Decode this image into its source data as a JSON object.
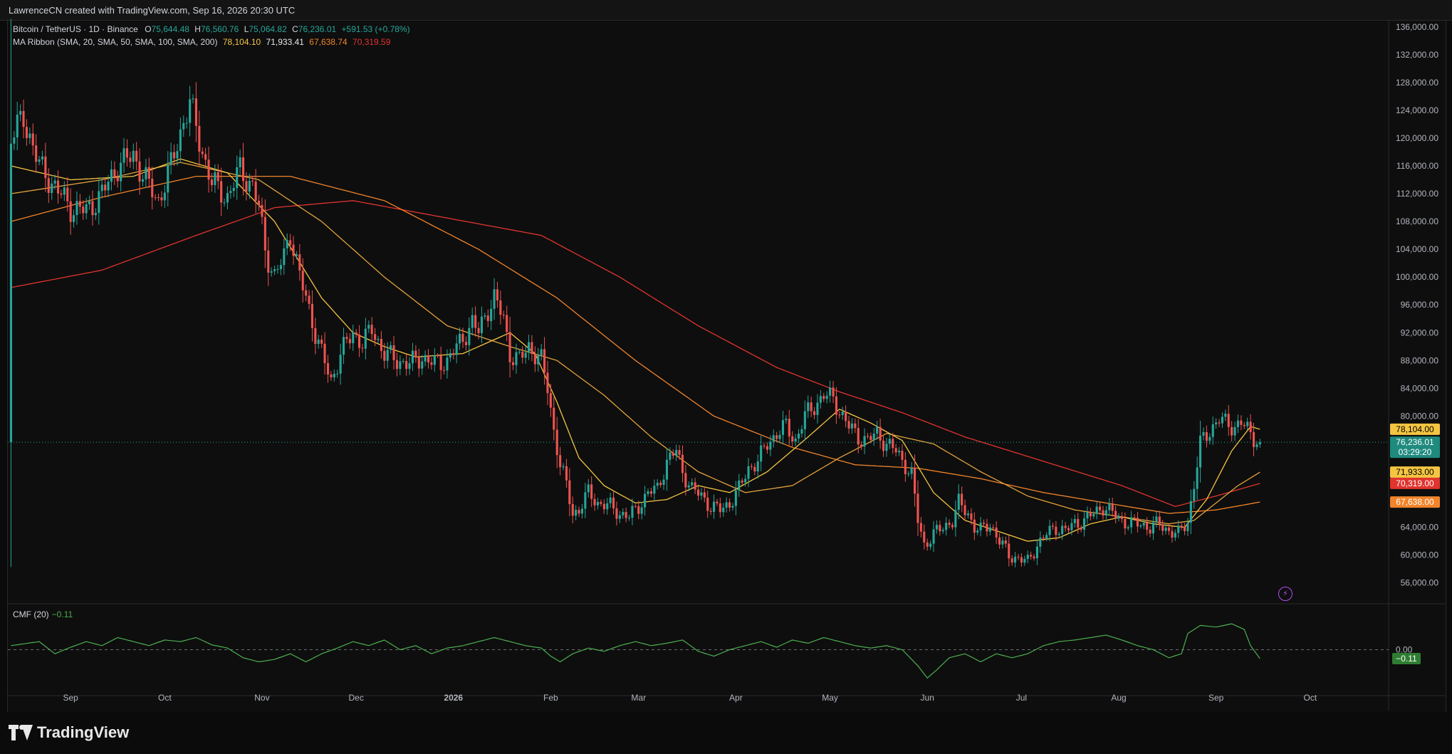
{
  "header": {
    "created_by": "LawrenceCN created with TradingView.com, Sep 16, 2026 20:30 UTC"
  },
  "legend": {
    "symbol": "Bitcoin / TetherUS · 1D · Binance",
    "o_label": "O",
    "o_value": "75,644.48",
    "h_label": "H",
    "h_value": "76,560.76",
    "l_label": "L",
    "l_value": "75,064.82",
    "c_label": "C",
    "c_value": "76,236.01",
    "change": "+591.53 (+0.78%)",
    "ma_title": "MA Ribbon (SMA, 20, SMA, 50, SMA, 100, SMA, 200)",
    "ma20": "78,104.10",
    "ma50": "71,933.41",
    "ma100": "67,638.74",
    "ma200": "70,319.59"
  },
  "cmf": {
    "title": "CMF (20)",
    "value": "−0.11",
    "zero_label": "0.00",
    "badge": "−0.11"
  },
  "price_badges": {
    "ma20": "78,104.10",
    "last_price": "76,236.01",
    "countdown": "03:29:20",
    "ma50": "71,933.41",
    "ma200": "70,319.59",
    "ma100": "67,638.74"
  },
  "brand": {
    "name": "TradingView"
  },
  "colors": {
    "up": "#26a69a",
    "down": "#ef5350",
    "ma20": "#f5c542",
    "ma50": "#e3a33a",
    "ma100": "#f2842a",
    "ma200": "#e0342e",
    "cmf": "#4caf50",
    "bg": "#0e0e0e"
  },
  "chart_data": {
    "type": "candlestick",
    "y_axis_ticks": [
      136000,
      132000,
      128000,
      124000,
      120000,
      116000,
      112000,
      108000,
      104000,
      100000,
      96000,
      92000,
      88000,
      84000,
      80000,
      64000,
      60000,
      56000
    ],
    "y_range": [
      53000,
      137000
    ],
    "x_ticks": [
      {
        "label": "Sep",
        "day": 10
      },
      {
        "label": "Oct",
        "day": 40
      },
      {
        "label": "Nov",
        "day": 71
      },
      {
        "label": "Dec",
        "day": 101
      },
      {
        "label": "2026",
        "day": 132
      },
      {
        "label": "Feb",
        "day": 163
      },
      {
        "label": "Mar",
        "day": 191
      },
      {
        "label": "Apr",
        "day": 222
      },
      {
        "label": "May",
        "day": 252
      },
      {
        "label": "Jun",
        "day": 283
      },
      {
        "label": "Jul",
        "day": 313
      },
      {
        "label": "Aug",
        "day": 344
      },
      {
        "label": "Sep",
        "day": 375
      },
      {
        "label": "Oct",
        "day": 405
      }
    ],
    "x_range": [
      -10,
      430
    ],
    "last_day": 389,
    "price_keypoints": [
      [
        -9,
        120000
      ],
      [
        -5,
        123000
      ],
      [
        0,
        116000
      ],
      [
        5,
        113000
      ],
      [
        10,
        110000
      ],
      [
        15,
        109500
      ],
      [
        20,
        112000
      ],
      [
        25,
        116000
      ],
      [
        30,
        117500
      ],
      [
        35,
        113000
      ],
      [
        38,
        111000
      ],
      [
        42,
        116000
      ],
      [
        46,
        122500
      ],
      [
        48,
        125000
      ],
      [
        52,
        118000
      ],
      [
        55,
        113500
      ],
      [
        60,
        111500
      ],
      [
        64,
        115500
      ],
      [
        68,
        113000
      ],
      [
        70,
        110000
      ],
      [
        72,
        104000
      ],
      [
        75,
        100000
      ],
      [
        78,
        103000
      ],
      [
        80,
        106500
      ],
      [
        83,
        100000
      ],
      [
        85,
        97000
      ],
      [
        88,
        92000
      ],
      [
        90,
        89000
      ],
      [
        93,
        85000
      ],
      [
        96,
        89000
      ],
      [
        100,
        92000
      ],
      [
        103,
        90500
      ],
      [
        106,
        92500
      ],
      [
        110,
        89000
      ],
      [
        114,
        88000
      ],
      [
        118,
        87500
      ],
      [
        122,
        88500
      ],
      [
        126,
        87500
      ],
      [
        130,
        88000
      ],
      [
        134,
        90500
      ],
      [
        138,
        93500
      ],
      [
        140,
        92000
      ],
      [
        143,
        95500
      ],
      [
        145,
        97000
      ],
      [
        148,
        94000
      ],
      [
        150,
        89000
      ],
      [
        153,
        88000
      ],
      [
        156,
        90000
      ],
      [
        160,
        88000
      ],
      [
        162,
        84000
      ],
      [
        164,
        78000
      ],
      [
        166,
        73000
      ],
      [
        168,
        70000
      ],
      [
        170,
        66000
      ],
      [
        172,
        66500
      ],
      [
        175,
        69000
      ],
      [
        178,
        67500
      ],
      [
        182,
        67000
      ],
      [
        185,
        66000
      ],
      [
        188,
        65500
      ],
      [
        191,
        67000
      ],
      [
        194,
        69000
      ],
      [
        197,
        69500
      ],
      [
        200,
        73500
      ],
      [
        203,
        75000
      ],
      [
        205,
        72000
      ],
      [
        208,
        69500
      ],
      [
        211,
        68500
      ],
      [
        214,
        67000
      ],
      [
        217,
        66500
      ],
      [
        220,
        67500
      ],
      [
        223,
        69500
      ],
      [
        226,
        72500
      ],
      [
        229,
        73500
      ],
      [
        232,
        76000
      ],
      [
        235,
        77500
      ],
      [
        238,
        78500
      ],
      [
        241,
        76500
      ],
      [
        244,
        80000
      ],
      [
        247,
        81500
      ],
      [
        250,
        83000
      ],
      [
        253,
        82500
      ],
      [
        256,
        80000
      ],
      [
        258,
        78500
      ],
      [
        261,
        77000
      ],
      [
        264,
        76500
      ],
      [
        267,
        77500
      ],
      [
        270,
        76000
      ],
      [
        273,
        75000
      ],
      [
        276,
        73000
      ],
      [
        278,
        71500
      ],
      [
        280,
        65000
      ],
      [
        282,
        61500
      ],
      [
        285,
        63000
      ],
      [
        288,
        64000
      ],
      [
        291,
        65000
      ],
      [
        293,
        67500
      ],
      [
        296,
        66000
      ],
      [
        298,
        64000
      ],
      [
        300,
        63500
      ],
      [
        303,
        64500
      ],
      [
        306,
        62000
      ],
      [
        309,
        60000
      ],
      [
        312,
        59500
      ],
      [
        315,
        59000
      ],
      [
        318,
        61500
      ],
      [
        321,
        63000
      ],
      [
        324,
        64000
      ],
      [
        327,
        63500
      ],
      [
        330,
        64500
      ],
      [
        333,
        65000
      ],
      [
        336,
        66000
      ],
      [
        339,
        67000
      ],
      [
        342,
        66000
      ],
      [
        345,
        65000
      ],
      [
        348,
        64500
      ],
      [
        351,
        64500
      ],
      [
        354,
        64000
      ],
      [
        357,
        64500
      ],
      [
        360,
        63500
      ],
      [
        363,
        63000
      ],
      [
        366,
        65000
      ],
      [
        368,
        70000
      ],
      [
        370,
        76000
      ],
      [
        373,
        78000
      ],
      [
        376,
        79500
      ],
      [
        378,
        79000
      ],
      [
        381,
        78500
      ],
      [
        383,
        79000
      ],
      [
        385,
        78000
      ],
      [
        387,
        77000
      ],
      [
        389,
        76236
      ]
    ],
    "ma_series": {
      "ma20": [
        [
          -9,
          116000
        ],
        [
          10,
          114000
        ],
        [
          30,
          114500
        ],
        [
          45,
          117000
        ],
        [
          60,
          115000
        ],
        [
          75,
          108000
        ],
        [
          90,
          97000
        ],
        [
          100,
          92000
        ],
        [
          110,
          90000
        ],
        [
          120,
          88500
        ],
        [
          135,
          89000
        ],
        [
          150,
          92000
        ],
        [
          158,
          89000
        ],
        [
          165,
          82000
        ],
        [
          172,
          74000
        ],
        [
          180,
          70000
        ],
        [
          190,
          67500
        ],
        [
          200,
          68000
        ],
        [
          210,
          70000
        ],
        [
          220,
          69000
        ],
        [
          232,
          72000
        ],
        [
          245,
          77000
        ],
        [
          255,
          81000
        ],
        [
          265,
          79000
        ],
        [
          275,
          76500
        ],
        [
          285,
          69000
        ],
        [
          295,
          65000
        ],
        [
          305,
          63500
        ],
        [
          315,
          62000
        ],
        [
          325,
          62500
        ],
        [
          335,
          64500
        ],
        [
          345,
          65500
        ],
        [
          355,
          64500
        ],
        [
          365,
          64000
        ],
        [
          372,
          68000
        ],
        [
          380,
          75000
        ],
        [
          386,
          78500
        ],
        [
          389,
          78104
        ]
      ],
      "ma50": [
        [
          -9,
          112000
        ],
        [
          20,
          114000
        ],
        [
          45,
          116500
        ],
        [
          70,
          114000
        ],
        [
          90,
          108000
        ],
        [
          110,
          100000
        ],
        [
          130,
          93000
        ],
        [
          150,
          90000
        ],
        [
          165,
          88000
        ],
        [
          180,
          83000
        ],
        [
          195,
          77000
        ],
        [
          210,
          72000
        ],
        [
          225,
          69000
        ],
        [
          240,
          70000
        ],
        [
          255,
          74000
        ],
        [
          270,
          77500
        ],
        [
          285,
          76000
        ],
        [
          300,
          72000
        ],
        [
          315,
          68500
        ],
        [
          330,
          66500
        ],
        [
          345,
          65500
        ],
        [
          360,
          64500
        ],
        [
          368,
          65000
        ],
        [
          375,
          67500
        ],
        [
          382,
          70000
        ],
        [
          389,
          71933
        ]
      ],
      "ma100": [
        [
          -9,
          108000
        ],
        [
          20,
          111500
        ],
        [
          50,
          114500
        ],
        [
          80,
          114500
        ],
        [
          110,
          111000
        ],
        [
          140,
          104000
        ],
        [
          165,
          97000
        ],
        [
          190,
          88000
        ],
        [
          215,
          80000
        ],
        [
          240,
          75500
        ],
        [
          260,
          73000
        ],
        [
          280,
          72500
        ],
        [
          300,
          71000
        ],
        [
          320,
          69000
        ],
        [
          340,
          67500
        ],
        [
          360,
          66000
        ],
        [
          375,
          66500
        ],
        [
          389,
          67638
        ]
      ],
      "ma200": [
        [
          -9,
          98500
        ],
        [
          20,
          101000
        ],
        [
          50,
          106000
        ],
        [
          75,
          110000
        ],
        [
          100,
          111000
        ],
        [
          130,
          108500
        ],
        [
          160,
          106000
        ],
        [
          185,
          100000
        ],
        [
          210,
          93000
        ],
        [
          235,
          87000
        ],
        [
          255,
          83500
        ],
        [
          275,
          80500
        ],
        [
          295,
          77000
        ],
        [
          320,
          73500
        ],
        [
          345,
          70000
        ],
        [
          362,
          67000
        ],
        [
          375,
          68500
        ],
        [
          389,
          70319
        ]
      ]
    },
    "cmf_ticks": [
      0
    ],
    "cmf_range": [
      -0.55,
      0.55
    ],
    "cmf_keypoints": [
      [
        -9,
        0.05
      ],
      [
        0,
        0.1
      ],
      [
        5,
        -0.05
      ],
      [
        10,
        0.03
      ],
      [
        15,
        0.1
      ],
      [
        20,
        0.05
      ],
      [
        25,
        0.15
      ],
      [
        30,
        0.1
      ],
      [
        35,
        0.05
      ],
      [
        40,
        0.12
      ],
      [
        45,
        0.1
      ],
      [
        50,
        0.15
      ],
      [
        55,
        0.06
      ],
      [
        60,
        0.02
      ],
      [
        65,
        -0.1
      ],
      [
        70,
        -0.15
      ],
      [
        75,
        -0.12
      ],
      [
        80,
        -0.05
      ],
      [
        85,
        -0.15
      ],
      [
        90,
        -0.05
      ],
      [
        95,
        0.02
      ],
      [
        100,
        0.1
      ],
      [
        105,
        0.05
      ],
      [
        110,
        0.12
      ],
      [
        115,
        0.0
      ],
      [
        120,
        0.05
      ],
      [
        125,
        -0.05
      ],
      [
        130,
        0.02
      ],
      [
        135,
        0.05
      ],
      [
        140,
        0.1
      ],
      [
        145,
        0.15
      ],
      [
        150,
        0.1
      ],
      [
        155,
        0.05
      ],
      [
        160,
        0.02
      ],
      [
        163,
        -0.08
      ],
      [
        166,
        -0.15
      ],
      [
        170,
        -0.05
      ],
      [
        175,
        0.02
      ],
      [
        180,
        -0.02
      ],
      [
        185,
        0.05
      ],
      [
        190,
        0.1
      ],
      [
        195,
        0.05
      ],
      [
        200,
        0.08
      ],
      [
        205,
        0.12
      ],
      [
        210,
        -0.02
      ],
      [
        215,
        -0.08
      ],
      [
        220,
        0.0
      ],
      [
        225,
        0.05
      ],
      [
        230,
        0.1
      ],
      [
        235,
        0.03
      ],
      [
        240,
        0.12
      ],
      [
        245,
        0.08
      ],
      [
        250,
        0.15
      ],
      [
        255,
        0.1
      ],
      [
        260,
        0.05
      ],
      [
        265,
        0.02
      ],
      [
        270,
        0.05
      ],
      [
        275,
        0.0
      ],
      [
        280,
        -0.2
      ],
      [
        283,
        -0.35
      ],
      [
        286,
        -0.25
      ],
      [
        290,
        -0.1
      ],
      [
        295,
        -0.05
      ],
      [
        300,
        -0.15
      ],
      [
        305,
        -0.05
      ],
      [
        310,
        -0.1
      ],
      [
        315,
        -0.05
      ],
      [
        320,
        0.05
      ],
      [
        325,
        0.1
      ],
      [
        330,
        0.12
      ],
      [
        335,
        0.15
      ],
      [
        340,
        0.18
      ],
      [
        345,
        0.12
      ],
      [
        350,
        0.05
      ],
      [
        355,
        0.0
      ],
      [
        360,
        -0.1
      ],
      [
        364,
        -0.05
      ],
      [
        366,
        0.2
      ],
      [
        370,
        0.3
      ],
      [
        375,
        0.28
      ],
      [
        380,
        0.32
      ],
      [
        384,
        0.25
      ],
      [
        386,
        0.05
      ],
      [
        389,
        -0.11
      ]
    ]
  }
}
